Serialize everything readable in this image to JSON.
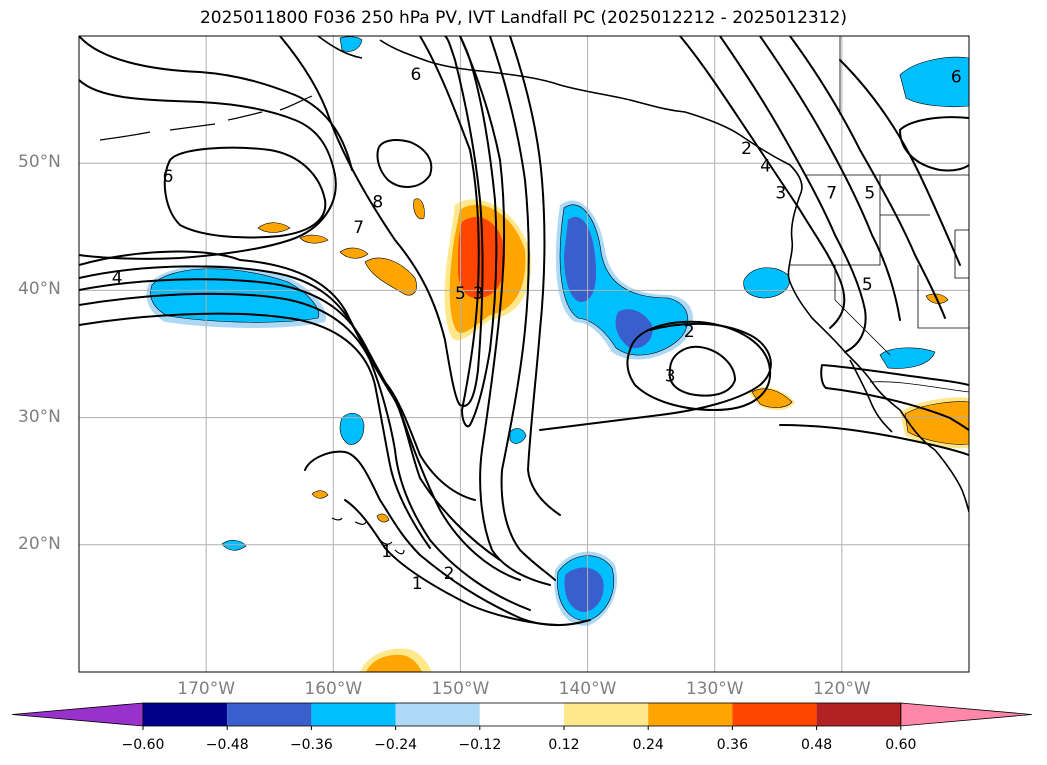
{
  "title": "2025011800 F036 250 hPa PV, IVT Landfall PC (2025012212 - 2025012312)",
  "map": {
    "lon_range": [
      -180,
      -110
    ],
    "lat_range": [
      10,
      60
    ],
    "lat_gridlines": [
      {
        "value": 20,
        "label": "20°N"
      },
      {
        "value": 30,
        "label": "30°N"
      },
      {
        "value": 40,
        "label": "40°N"
      },
      {
        "value": 50,
        "label": "50°N"
      }
    ],
    "lon_gridlines": [
      {
        "value": -170,
        "label": "170°W"
      },
      {
        "value": -160,
        "label": "160°W"
      },
      {
        "value": -150,
        "label": "150°W"
      },
      {
        "value": -140,
        "label": "140°W"
      },
      {
        "value": -130,
        "label": "130°W"
      },
      {
        "value": -120,
        "label": "120°W"
      }
    ],
    "grid": true,
    "coastlines": true,
    "contour_color": "#000000",
    "contour_labels": [
      {
        "text": "6",
        "lon": -173,
        "lat": 49
      },
      {
        "text": "4",
        "lon": -177,
        "lat": 41
      },
      {
        "text": "6",
        "lon": -153.5,
        "lat": 57
      },
      {
        "text": "8",
        "lon": -156.5,
        "lat": 47
      },
      {
        "text": "7",
        "lon": -158,
        "lat": 45
      },
      {
        "text": "5",
        "lon": -150,
        "lat": 39.8
      },
      {
        "text": "3",
        "lon": -148.6,
        "lat": 39.8
      },
      {
        "text": "2",
        "lon": -132,
        "lat": 36.8
      },
      {
        "text": "3",
        "lon": -133.5,
        "lat": 33.3
      },
      {
        "text": "1",
        "lon": -155.8,
        "lat": 19.5
      },
      {
        "text": "2",
        "lon": -150.9,
        "lat": 17.8
      },
      {
        "text": "1",
        "lon": -153.4,
        "lat": 17
      },
      {
        "text": "2",
        "lon": -127.5,
        "lat": 51.2
      },
      {
        "text": "4",
        "lon": -126,
        "lat": 49.8
      },
      {
        "text": "3",
        "lon": -124.8,
        "lat": 47.7
      },
      {
        "text": "7",
        "lon": -120.8,
        "lat": 47.7
      },
      {
        "text": "5",
        "lon": -117.8,
        "lat": 47.7
      },
      {
        "text": "6",
        "lon": -111,
        "lat": 56.8
      },
      {
        "text": "5",
        "lon": -118,
        "lat": 40.5
      }
    ]
  },
  "colorbar": {
    "tick_labels": [
      "−0.60",
      "−0.48",
      "−0.36",
      "−0.24",
      "−0.12",
      "0.12",
      "0.24",
      "0.36",
      "0.48",
      "0.60"
    ],
    "colors": [
      "#9932cc",
      "#00008b",
      "#3a5fcd",
      "#00bfff",
      "#add8f6",
      "#ffffff",
      "#ffe88c",
      "#ffa500",
      "#ff4500",
      "#b22222",
      "#ff88aa"
    ]
  }
}
